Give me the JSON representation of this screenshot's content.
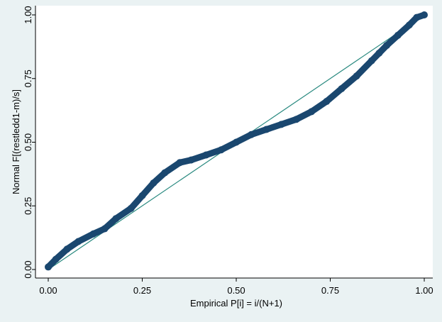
{
  "chart_data": {
    "type": "scatter",
    "x_label": "Empirical P[i] = i/(N+1)",
    "y_label": "Normal F[(restledd1-m)/s]",
    "series": [
      {
        "color": "#1a476f",
        "x": [
          0,
          0.02,
          0.05,
          0.08,
          0.12,
          0.15,
          0.18,
          0.22,
          0.25,
          0.28,
          0.31,
          0.35,
          0.38,
          0.42,
          0.46,
          0.5,
          0.54,
          0.58,
          0.62,
          0.66,
          0.7,
          0.74,
          0.78,
          0.82,
          0.86,
          0.88,
          0.9,
          0.93,
          0.96,
          0.98,
          1.0
        ],
        "values": [
          0.01,
          0.04,
          0.08,
          0.11,
          0.14,
          0.16,
          0.2,
          0.24,
          0.29,
          0.34,
          0.38,
          0.42,
          0.43,
          0.45,
          0.47,
          0.5,
          0.53,
          0.55,
          0.57,
          0.59,
          0.62,
          0.66,
          0.71,
          0.76,
          0.82,
          0.85,
          0.88,
          0.92,
          0.96,
          0.99,
          1.0
        ]
      }
    ],
    "reference_line": {
      "color": "#2a8a80",
      "x": [
        0,
        1
      ],
      "values": [
        0,
        1
      ]
    },
    "xlim": [
      0,
      1
    ],
    "ylim": [
      0,
      1
    ],
    "xticks": [
      {
        "value": 0,
        "label": "0.00"
      },
      {
        "value": 0.25,
        "label": "0.25"
      },
      {
        "value": 0.5,
        "label": "0.50"
      },
      {
        "value": 0.75,
        "label": "0.75"
      },
      {
        "value": 1,
        "label": "1.00"
      }
    ],
    "yticks": [
      {
        "value": 0,
        "label": "0.00"
      },
      {
        "value": 0.25,
        "label": "0.25"
      },
      {
        "value": 0.5,
        "label": "0.50"
      },
      {
        "value": 0.75,
        "label": "0.75"
      },
      {
        "value": 1,
        "label": "1.00"
      }
    ],
    "grid": false
  }
}
